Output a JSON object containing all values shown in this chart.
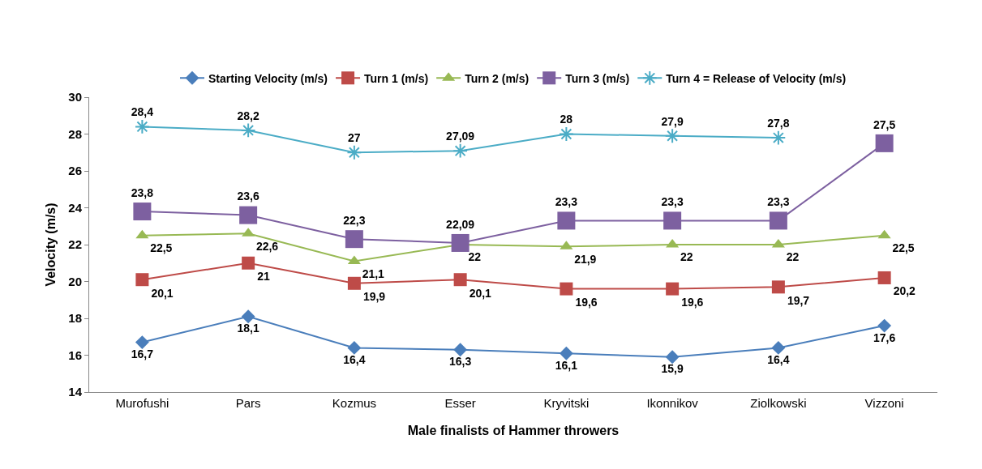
{
  "chart_data": {
    "type": "line",
    "xlabel": "Male finalists of Hammer throwers",
    "ylabel": "Velocity (m/s)",
    "categories": [
      "Murofushi",
      "Pars",
      "Kozmus",
      "Esser",
      "Kryvitski",
      "Ikonnikov",
      "Ziolkowski",
      "Vizzoni"
    ],
    "ylim": [
      14,
      30
    ],
    "yticks": [
      14,
      16,
      18,
      20,
      22,
      24,
      26,
      28,
      30
    ],
    "grid": false,
    "legend": "top",
    "series": [
      {
        "name": "Starting Velocity (m/s)",
        "color": "#4a7ebb",
        "marker": "diamond",
        "values": [
          16.7,
          18.1,
          16.4,
          16.3,
          16.1,
          15.9,
          16.4,
          17.6
        ],
        "value_labels": [
          "16,7",
          "18,1",
          "16,4",
          "16,3",
          "16,1",
          "15,9",
          "16,4",
          "17,6"
        ]
      },
      {
        "name": "Turn 1 (m/s)",
        "color": "#be4b48",
        "marker": "square",
        "values": [
          20.1,
          21,
          19.9,
          20.1,
          19.6,
          19.6,
          19.7,
          20.2
        ],
        "value_labels": [
          "20,1",
          "21",
          "19,9",
          "20,1",
          "19,6",
          "19,6",
          "19,7",
          "20,2"
        ]
      },
      {
        "name": "Turn 2 (m/s)",
        "color": "#98b954",
        "marker": "triangle",
        "values": [
          22.5,
          22.6,
          21.1,
          22,
          21.9,
          22,
          22,
          22.5
        ],
        "value_labels": [
          "22,5",
          "22,6",
          "21,1",
          "22",
          "21,9",
          "22",
          "22",
          "22,5"
        ]
      },
      {
        "name": "Turn 3 (m/s)",
        "color": "#7d60a0",
        "marker": "square",
        "values": [
          23.8,
          23.6,
          22.3,
          22.09,
          23.3,
          23.3,
          23.3,
          27.5
        ],
        "value_labels": [
          "23,8",
          "23,6",
          "22,3",
          "22,09",
          "23,3",
          "23,3",
          "23,3",
          "27,5"
        ]
      },
      {
        "name": "Turn 4 = Release of Velocity (m/s)",
        "color": "#4bacc6",
        "marker": "cross",
        "values": [
          28.4,
          28.2,
          27,
          27.09,
          28,
          27.9,
          27.8,
          null
        ],
        "value_labels": [
          "28,4",
          "28,2",
          "27",
          "27,09",
          "28",
          "27,9",
          "27,8",
          null
        ]
      }
    ]
  }
}
